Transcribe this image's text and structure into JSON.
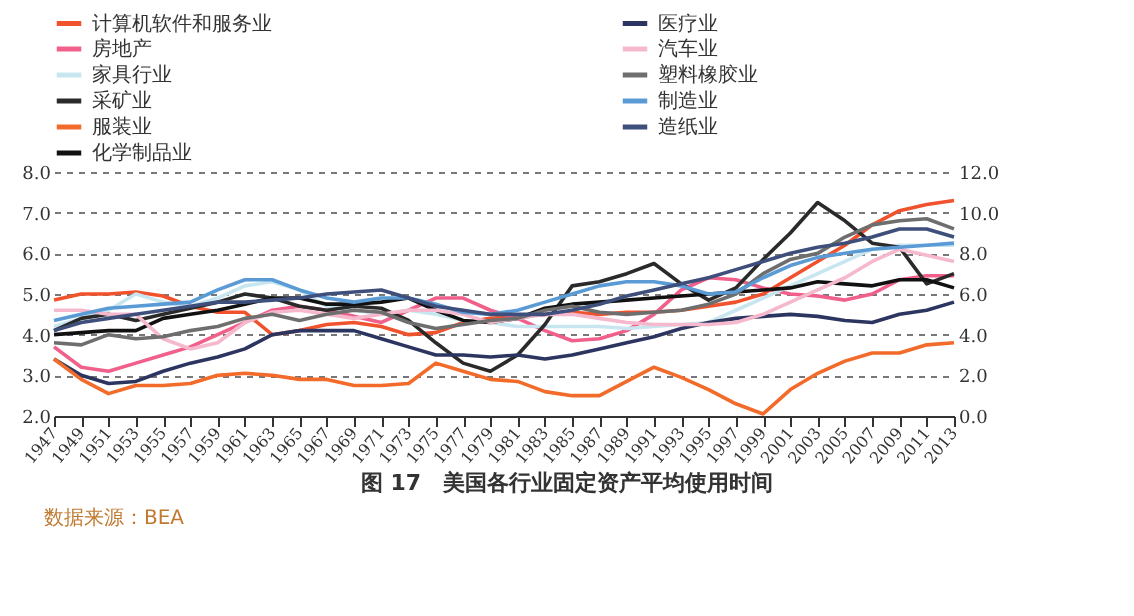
{
  "chart_data": {
    "type": "line",
    "title": "图 17　美国各行业固定资产平均使用时间",
    "annotations": [
      "数据来源：BEA"
    ],
    "x": [
      1947,
      1949,
      1951,
      1953,
      1955,
      1957,
      1959,
      1961,
      1963,
      1965,
      1967,
      1969,
      1971,
      1973,
      1975,
      1977,
      1979,
      1981,
      1983,
      1985,
      1987,
      1989,
      1991,
      1993,
      1995,
      1997,
      1999,
      2001,
      2003,
      2005,
      2007,
      2009,
      2011,
      2013
    ],
    "xlim": [
      1947,
      2013
    ],
    "xticks": [
      1947,
      1949,
      1951,
      1953,
      1955,
      1957,
      1959,
      1961,
      1963,
      1965,
      1967,
      1969,
      1971,
      1973,
      1975,
      1977,
      1979,
      1981,
      1983,
      1985,
      1987,
      1989,
      1991,
      1993,
      1995,
      1997,
      1999,
      2001,
      2003,
      2005,
      2007,
      2009,
      2011,
      2013
    ],
    "ylim": [
      2,
      8
    ],
    "yticks": [
      {
        "value": 2,
        "label": "2.0"
      },
      {
        "value": 3,
        "label": "3.0"
      },
      {
        "value": 4,
        "label": "4.0"
      },
      {
        "value": 5,
        "label": "5.0"
      },
      {
        "value": 6,
        "label": "6.0"
      },
      {
        "value": 7,
        "label": "7.0"
      },
      {
        "value": 8,
        "label": "8.0"
      }
    ],
    "y2lim": [
      0,
      12
    ],
    "y2ticks": [
      {
        "value": 0,
        "label": "0.0"
      },
      {
        "value": 2,
        "label": "2.0"
      },
      {
        "value": 4,
        "label": "4.0"
      },
      {
        "value": 6,
        "label": "6.0"
      },
      {
        "value": 8,
        "label": "8.0"
      },
      {
        "value": 10,
        "label": "10.0"
      },
      {
        "value": 12,
        "label": "12.0"
      }
    ],
    "grid": "y",
    "legend": "top",
    "series": [
      {
        "name": "计算机软件和服务业",
        "color": "#f0522e",
        "values": [
          4.85,
          5.0,
          5.0,
          5.05,
          4.95,
          4.7,
          4.55,
          4.55,
          4.0,
          4.1,
          4.25,
          4.3,
          4.2,
          4.0,
          4.05,
          4.3,
          4.4,
          4.45,
          4.5,
          4.55,
          4.5,
          4.55,
          4.55,
          4.6,
          4.7,
          4.8,
          5.0,
          5.4,
          5.8,
          6.2,
          6.7,
          7.05,
          7.2,
          7.3
        ]
      },
      {
        "name": "房地产",
        "color": "#f0608a",
        "values": [
          3.7,
          3.2,
          3.1,
          3.3,
          3.5,
          3.7,
          4.0,
          4.3,
          4.6,
          4.7,
          4.6,
          4.45,
          4.3,
          4.6,
          4.9,
          4.9,
          4.6,
          4.4,
          4.1,
          3.85,
          3.9,
          4.1,
          4.5,
          5.1,
          5.4,
          5.35,
          5.15,
          5.0,
          4.95,
          4.85,
          5.0,
          5.35,
          5.45,
          5.45
        ]
      },
      {
        "name": "家具行业",
        "color": "#c8e6f0",
        "values": [
          4.2,
          4.4,
          4.6,
          5.0,
          4.8,
          4.7,
          4.9,
          5.2,
          5.3,
          5.1,
          4.7,
          4.6,
          4.5,
          4.6,
          4.5,
          4.35,
          4.3,
          4.2,
          4.2,
          4.2,
          4.2,
          4.15,
          4.2,
          4.25,
          4.3,
          4.6,
          4.9,
          5.2,
          5.5,
          5.8,
          6.1,
          6.2,
          6.2,
          6.2
        ]
      },
      {
        "name": "采矿业",
        "color": "#2a2a2a",
        "values": [
          4.1,
          4.4,
          4.5,
          4.35,
          4.5,
          4.65,
          4.8,
          5.0,
          4.9,
          4.7,
          4.6,
          4.7,
          4.65,
          4.35,
          3.8,
          3.3,
          3.1,
          3.5,
          4.25,
          5.2,
          5.3,
          5.5,
          5.75,
          5.25,
          4.85,
          5.15,
          5.85,
          6.5,
          7.25,
          6.8,
          6.25,
          6.15,
          5.25,
          5.5
        ]
      },
      {
        "name": "服装业",
        "color": "#f26b2a",
        "axis": "y2",
        "values": [
          2.8,
          1.8,
          1.1,
          1.5,
          1.5,
          1.6,
          2.0,
          2.1,
          2.0,
          1.8,
          1.8,
          1.5,
          1.5,
          1.6,
          2.6,
          2.2,
          1.8,
          1.7,
          1.2,
          1.0,
          1.0,
          1.7,
          2.4,
          1.9,
          1.3,
          0.6,
          0.1,
          1.3,
          2.1,
          2.7,
          3.1,
          3.1,
          3.5,
          3.6
        ]
      },
      {
        "name": "化学制品业",
        "color": "#111111",
        "values": [
          4.0,
          4.05,
          4.1,
          4.1,
          4.4,
          4.5,
          4.6,
          4.75,
          4.9,
          4.9,
          4.75,
          4.75,
          4.8,
          4.9,
          4.6,
          4.35,
          4.3,
          4.4,
          4.65,
          4.75,
          4.8,
          4.85,
          4.9,
          4.95,
          5.0,
          5.05,
          5.1,
          5.15,
          5.3,
          5.25,
          5.2,
          5.35,
          5.35,
          5.15
        ]
      },
      {
        "name": "医疗业",
        "color": "#2c3560",
        "values": [
          3.4,
          3.0,
          2.8,
          2.85,
          3.1,
          3.3,
          3.45,
          3.65,
          4.0,
          4.1,
          4.1,
          4.1,
          3.9,
          3.7,
          3.5,
          3.5,
          3.45,
          3.5,
          3.4,
          3.5,
          3.65,
          3.8,
          3.95,
          4.15,
          4.3,
          4.4,
          4.45,
          4.5,
          4.45,
          4.35,
          4.3,
          4.5,
          4.6,
          4.8
        ]
      },
      {
        "name": "汽车业",
        "color": "#f5b8cc",
        "values": [
          4.6,
          4.6,
          4.5,
          4.5,
          3.9,
          3.65,
          3.8,
          4.3,
          4.55,
          4.6,
          4.5,
          4.4,
          4.5,
          4.6,
          4.6,
          4.5,
          4.3,
          4.4,
          4.5,
          4.5,
          4.4,
          4.3,
          4.25,
          4.25,
          4.25,
          4.3,
          4.5,
          4.8,
          5.1,
          5.4,
          5.8,
          6.1,
          5.95,
          5.8
        ]
      },
      {
        "name": "塑料橡胶业",
        "color": "#6e6e6e",
        "values": [
          3.8,
          3.75,
          4.0,
          3.9,
          3.95,
          4.1,
          4.2,
          4.4,
          4.5,
          4.35,
          4.5,
          4.6,
          4.55,
          4.3,
          4.15,
          4.25,
          4.35,
          4.4,
          4.6,
          4.7,
          4.55,
          4.5,
          4.55,
          4.6,
          4.75,
          5.0,
          5.5,
          5.85,
          6.0,
          6.4,
          6.7,
          6.8,
          6.85,
          6.6
        ]
      },
      {
        "name": "制造业",
        "color": "#5b9bd5",
        "values": [
          4.35,
          4.5,
          4.65,
          4.7,
          4.75,
          4.8,
          5.1,
          5.35,
          5.35,
          5.1,
          4.9,
          4.8,
          4.9,
          4.9,
          4.75,
          4.55,
          4.5,
          4.6,
          4.8,
          5.0,
          5.2,
          5.3,
          5.3,
          5.2,
          5.0,
          5.05,
          5.4,
          5.7,
          5.9,
          6.0,
          6.1,
          6.15,
          6.2,
          6.25
        ]
      },
      {
        "name": "造纸业",
        "color": "#3e4f7c",
        "values": [
          4.1,
          4.3,
          4.4,
          4.5,
          4.6,
          4.7,
          4.8,
          4.8,
          4.85,
          4.9,
          5.0,
          5.05,
          5.1,
          4.9,
          4.7,
          4.6,
          4.5,
          4.5,
          4.5,
          4.6,
          4.75,
          4.95,
          5.1,
          5.25,
          5.4,
          5.6,
          5.8,
          6.0,
          6.15,
          6.25,
          6.4,
          6.6,
          6.6,
          6.4
        ]
      }
    ]
  }
}
